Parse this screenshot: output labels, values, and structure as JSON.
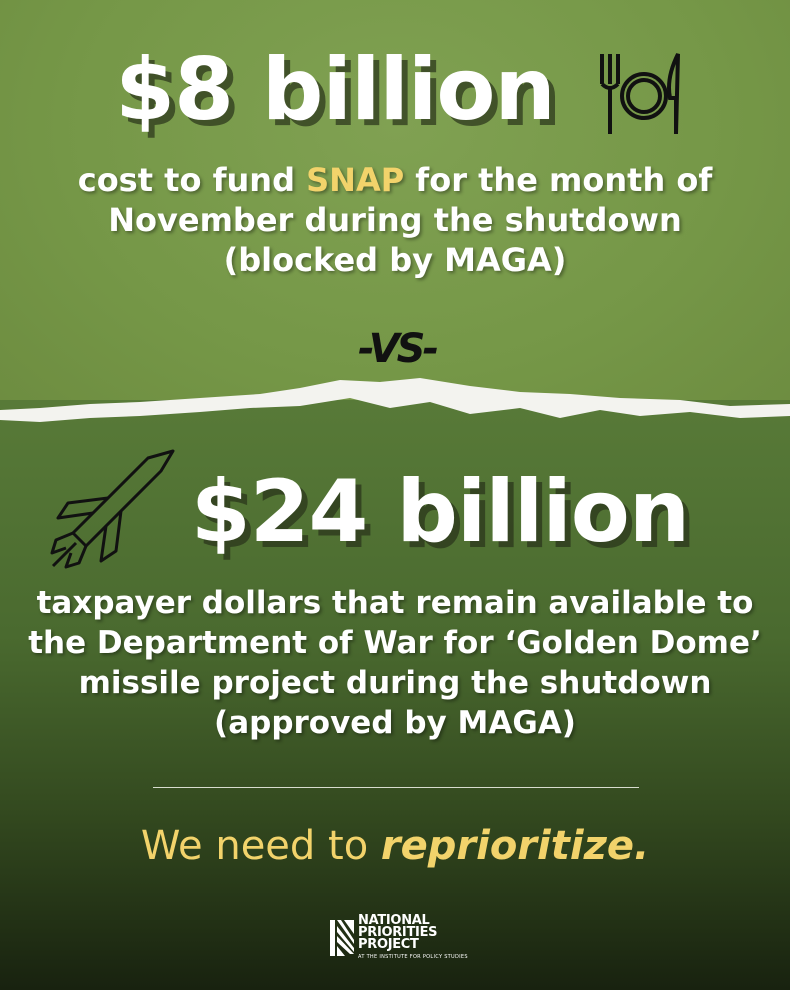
{
  "top": {
    "amount": "$8 billion",
    "icon": "plate-fork-knife-icon",
    "line1_pre": "cost to fund ",
    "line1_highlight": "SNAP",
    "line1_post": " for the month of",
    "line2": "November during the shutdown",
    "line3": "(blocked by MAGA)"
  },
  "versus": "-VS-",
  "bottom": {
    "icon": "missile-icon",
    "amount": "$24 billion",
    "line1": "taxpayer dollars that remain available to",
    "line2": "the Department of War for ‘Golden Dome’",
    "line3": "missile project during the shutdown",
    "line4": "(approved by MAGA)"
  },
  "tagline": {
    "pre": "We need to ",
    "emph": "reprioritize",
    "post": "."
  },
  "logo": {
    "line1": "NATIONAL",
    "line2": "PRIORITIES",
    "line3": "PROJECT",
    "subline": "AT THE INSTITUTE FOR POLICY STUDIES"
  },
  "colors": {
    "highlight": "#f2d36b",
    "top_green": "#789a4a",
    "bottom_green": "#4a6a2f"
  }
}
